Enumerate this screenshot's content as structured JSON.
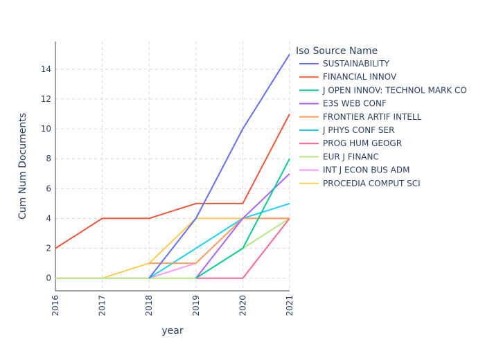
{
  "chart_data": {
    "type": "line",
    "title": "",
    "xlabel": "year",
    "ylabel": "Cum Num Documents",
    "x": [
      2016,
      2017,
      2018,
      2019,
      2020,
      2021
    ],
    "xlim": [
      2016,
      2021
    ],
    "ylim": [
      -0.85,
      15.85
    ],
    "yticks": [
      0,
      2,
      4,
      6,
      8,
      10,
      12,
      14
    ],
    "grid": true,
    "legend": {
      "title": "Iso Source Name",
      "placement": "right"
    },
    "series": [
      {
        "name": "SUSTAINABILITY",
        "color": "#636efa",
        "x": [
          2018,
          2019,
          2020,
          2021
        ],
        "values": [
          0,
          4,
          10,
          15
        ]
      },
      {
        "name": "FINANCIAL INNOV",
        "color": "#EF553B",
        "x": [
          2016,
          2017,
          2018,
          2019,
          2020,
          2021
        ],
        "values": [
          2,
          4,
          4,
          5,
          5,
          11
        ]
      },
      {
        "name": "J OPEN INNOV: TECHNOL MARK CO",
        "color": "#00cc96",
        "x": [
          2019,
          2020,
          2021
        ],
        "values": [
          0,
          2,
          8
        ]
      },
      {
        "name": "E3S WEB CONF",
        "color": "#ab63fa",
        "x": [
          2019,
          2020,
          2021
        ],
        "values": [
          0,
          4,
          7
        ]
      },
      {
        "name": "FRONTIER ARTIF INTELL",
        "color": "#FFA15A",
        "x": [
          2018,
          2019,
          2020,
          2021
        ],
        "values": [
          1,
          1,
          4,
          4
        ]
      },
      {
        "name": "J PHYS CONF SER",
        "color": "#19d3f3",
        "x": [
          2018,
          2019,
          2020,
          2021
        ],
        "values": [
          0,
          2,
          4,
          5
        ]
      },
      {
        "name": "PROG HUM GEOGR",
        "color": "#FF6692",
        "x": [
          2019,
          2020,
          2021
        ],
        "values": [
          0,
          0,
          4
        ]
      },
      {
        "name": "EUR J FINANC",
        "color": "#B6E880",
        "x": [
          2016,
          2017,
          2018,
          2019,
          2020,
          2021
        ],
        "values": [
          0,
          0,
          0,
          0,
          2,
          4
        ]
      },
      {
        "name": "INT J ECON BUS ADM",
        "color": "#FF97FF",
        "x": [
          2016,
          2017,
          2018,
          2019,
          2020,
          2021
        ],
        "values": [
          0,
          0,
          0,
          1,
          4,
          4
        ]
      },
      {
        "name": "PROCEDIA COMPUT SCI",
        "color": "#FECB52",
        "x": [
          2016,
          2017,
          2018,
          2019,
          2020,
          2021
        ],
        "values": [
          0,
          0,
          1,
          4,
          4,
          4
        ]
      }
    ]
  }
}
